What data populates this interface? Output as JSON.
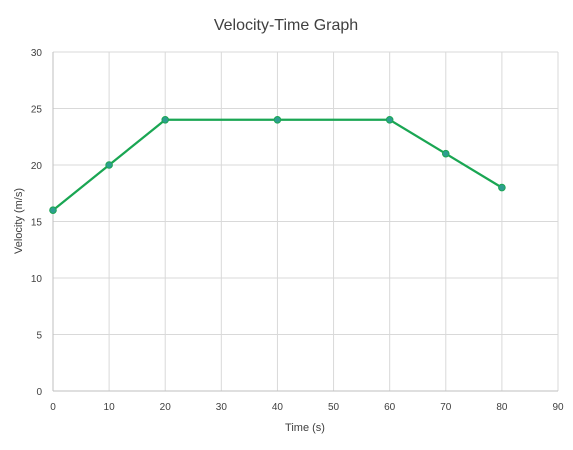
{
  "chart_data": {
    "type": "line",
    "title": "Velocity-Time Graph",
    "xlabel": "Time (s)",
    "ylabel": "Velocity (m/s)",
    "xlim": [
      0,
      90
    ],
    "ylim": [
      0,
      30
    ],
    "x_ticks": [
      0,
      10,
      20,
      30,
      40,
      50,
      60,
      70,
      80,
      90
    ],
    "y_ticks": [
      0,
      5,
      10,
      15,
      20,
      25,
      30
    ],
    "grid": true,
    "series": [
      {
        "x": [
          0,
          10,
          20,
          40,
          60,
          70,
          80
        ],
        "y": [
          16,
          20,
          24,
          24,
          24,
          21,
          18
        ],
        "color": "#1aa653",
        "marker_color": "#2e9e8f"
      }
    ]
  }
}
